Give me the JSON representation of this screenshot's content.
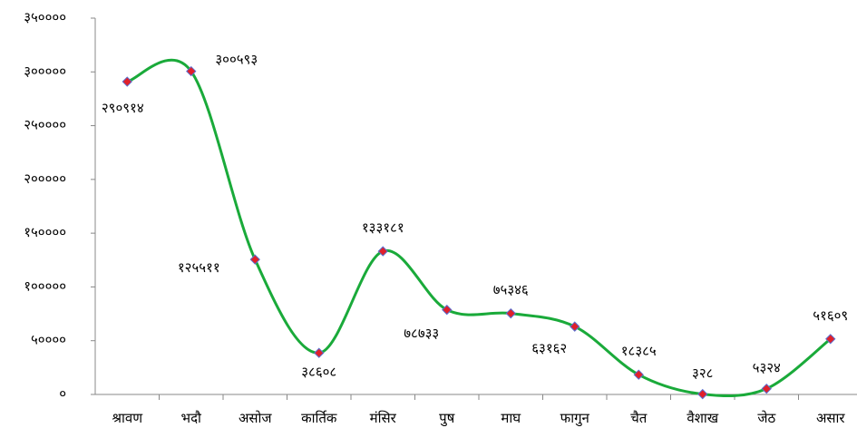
{
  "chart_data": {
    "type": "line",
    "categories": [
      "श्रावण",
      "भदौ",
      "असोज",
      "कार्तिक",
      "मंसिर",
      "पुष",
      "माघ",
      "फागुन",
      "चैत",
      "वैशाख",
      "जेठ",
      "असार"
    ],
    "series": [
      {
        "color": "#1aaa3a",
        "values": [
          290914,
          300593,
          125511,
          38608,
          133181,
          78733,
          75346,
          63162,
          18385,
          328,
          5324,
          51609
        ],
        "value_labels": [
          "२९०९१४",
          "३००५९३",
          "१२५५११",
          "३८६०८",
          "१३३१८१",
          "७८७३३",
          "७५३४६",
          "६३१६२",
          "१८३८५",
          "३२८",
          "५३२४",
          "५१६०९"
        ]
      }
    ],
    "ylim": [
      0,
      350000
    ],
    "yticks": [
      {
        "value": 0,
        "label": "०"
      },
      {
        "value": 50000,
        "label": "५००००"
      },
      {
        "value": 100000,
        "label": "१०००००"
      },
      {
        "value": 150000,
        "label": "१५००००"
      },
      {
        "value": 200000,
        "label": "२०००००"
      },
      {
        "value": 250000,
        "label": "२५००००"
      },
      {
        "value": 300000,
        "label": "३०००००"
      },
      {
        "value": 350000,
        "label": "३५००००"
      }
    ],
    "marker_color": "#e0202a"
  }
}
